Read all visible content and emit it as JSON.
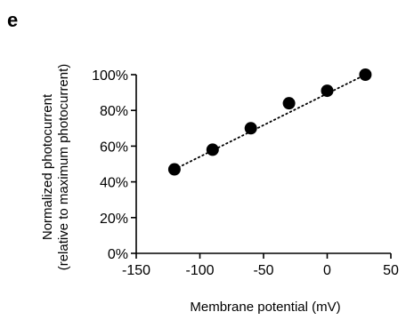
{
  "panel_label": "e",
  "chart_data": {
    "type": "scatter",
    "x": [
      -120,
      -90,
      -60,
      -30,
      0,
      30
    ],
    "y": [
      47,
      58,
      70,
      84,
      91,
      100
    ],
    "xlabel": "Membrane potential (mV)",
    "ylabel_line1": "Normalized photocurrent",
    "ylabel_line2": "(relative to maximum photocurrent)",
    "xlim": [
      -150,
      50
    ],
    "ylim": [
      0,
      100
    ],
    "xticks": [
      -150,
      -100,
      -50,
      0,
      50
    ],
    "xtick_labels": [
      "-150",
      "-100",
      "-50",
      "0",
      "50"
    ],
    "yticks": [
      0,
      20,
      40,
      60,
      80,
      100
    ],
    "ytick_labels": [
      "0%",
      "20%",
      "40%",
      "60%",
      "80%",
      "100%"
    ],
    "fit_line": {
      "style": "dotted",
      "x": [
        -120,
        30
      ],
      "y": [
        47,
        100
      ]
    },
    "grid": false,
    "legend": "none"
  }
}
